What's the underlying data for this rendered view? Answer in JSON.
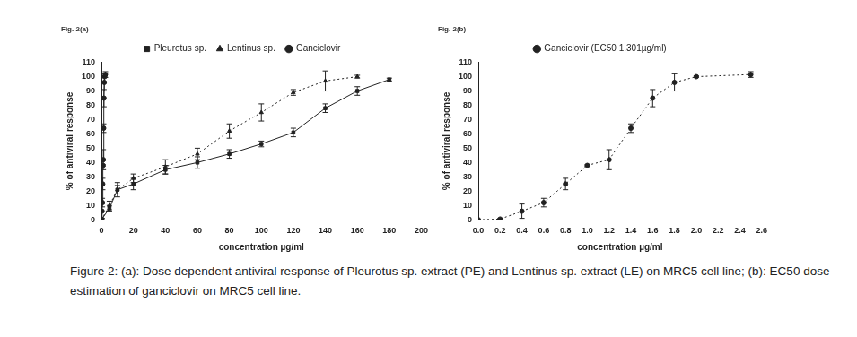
{
  "chart_data": [
    {
      "type": "line",
      "title": "Fig. 2(a)",
      "x_label": "concentration µg/ml",
      "y_label": "% of antiviral response",
      "xlim": [
        0,
        200
      ],
      "xticks": [
        0,
        20,
        40,
        60,
        80,
        100,
        120,
        140,
        160,
        180,
        200
      ],
      "ylim": [
        0,
        110
      ],
      "yticks": [
        0,
        10,
        20,
        30,
        40,
        50,
        60,
        70,
        80,
        90,
        100,
        110
      ],
      "grid": false,
      "legend": "top",
      "series": [
        {
          "name": "Pleurotus sp.",
          "color": "#222222",
          "marker": "square",
          "line_style": "solid",
          "x": [
            0,
            5,
            10,
            20,
            40,
            60,
            80,
            100,
            120,
            140,
            160,
            180
          ],
          "values": [
            0,
            8,
            21,
            25,
            35,
            40,
            46,
            53,
            61,
            78,
            90,
            98
          ],
          "errors": [
            0,
            2,
            3,
            4,
            3,
            4,
            3,
            2,
            3,
            3,
            3,
            1
          ]
        },
        {
          "name": "Lentinus sp.",
          "color": "#222222",
          "marker": "triangle",
          "line_style": "dotted",
          "x": [
            0,
            5,
            10,
            20,
            40,
            60,
            80,
            100,
            120,
            140,
            160
          ],
          "values": [
            0,
            10,
            21,
            29,
            37,
            46,
            62,
            75,
            89,
            97,
            100
          ],
          "errors": [
            0,
            3,
            5,
            3,
            5,
            4,
            5,
            6,
            2,
            7,
            1
          ]
        },
        {
          "name": "Ganciclovir",
          "color": "#222222",
          "marker": "circle",
          "line_style": "solid",
          "x": [
            0,
            0.2,
            0.4,
            0.6,
            0.8,
            1.0,
            1.2,
            1.4,
            1.6,
            1.8,
            2.0,
            2.5
          ],
          "values": [
            0,
            0.5,
            6,
            12,
            25,
            38,
            42,
            64,
            85,
            96,
            100,
            101.5
          ],
          "errors": [
            0,
            0.5,
            5,
            3,
            4,
            0.5,
            7,
            3,
            6,
            6,
            0.5,
            2
          ]
        }
      ]
    },
    {
      "type": "line",
      "title": "Fig. 2(b)",
      "x_label": "concentration µg/ml",
      "y_label": "% of antiviral response",
      "xlim": [
        0,
        2.6
      ],
      "xticks": [
        {
          "value": 0,
          "label": "0.0"
        },
        0.2,
        0.4,
        0.6,
        0.8,
        {
          "value": 1,
          "label": "1.0"
        },
        1.2,
        1.4,
        1.6,
        1.8,
        {
          "value": 2,
          "label": "2.0"
        },
        2.2,
        2.4,
        2.6
      ],
      "ylim": [
        0,
        110
      ],
      "yticks": [
        0,
        10,
        20,
        30,
        40,
        50,
        60,
        70,
        80,
        90,
        100,
        110
      ],
      "grid": false,
      "legend": "top",
      "series": [
        {
          "name": "Ganciclovir (EC50 1.301µg/ml)",
          "color": "#222222",
          "marker": "circle",
          "line_style": "dotted",
          "x": [
            0,
            0.2,
            0.4,
            0.6,
            0.8,
            1.0,
            1.2,
            1.4,
            1.6,
            1.8,
            2.0,
            2.5
          ],
          "values": [
            0,
            0.5,
            6,
            12,
            25,
            38,
            42,
            64,
            85,
            96,
            100,
            101.5
          ],
          "errors": [
            0,
            0.5,
            5,
            3,
            4,
            0.5,
            7,
            3,
            6,
            6,
            0.5,
            2
          ]
        }
      ]
    }
  ],
  "caption": "Figure 2: (a): Dose dependent antiviral response of Pleurotus sp. extract (PE) and Lentinus sp. extract (LE) on MRC5 cell line; (b): EC50 dose estimation of ganciclovir on MRC5 cell line."
}
